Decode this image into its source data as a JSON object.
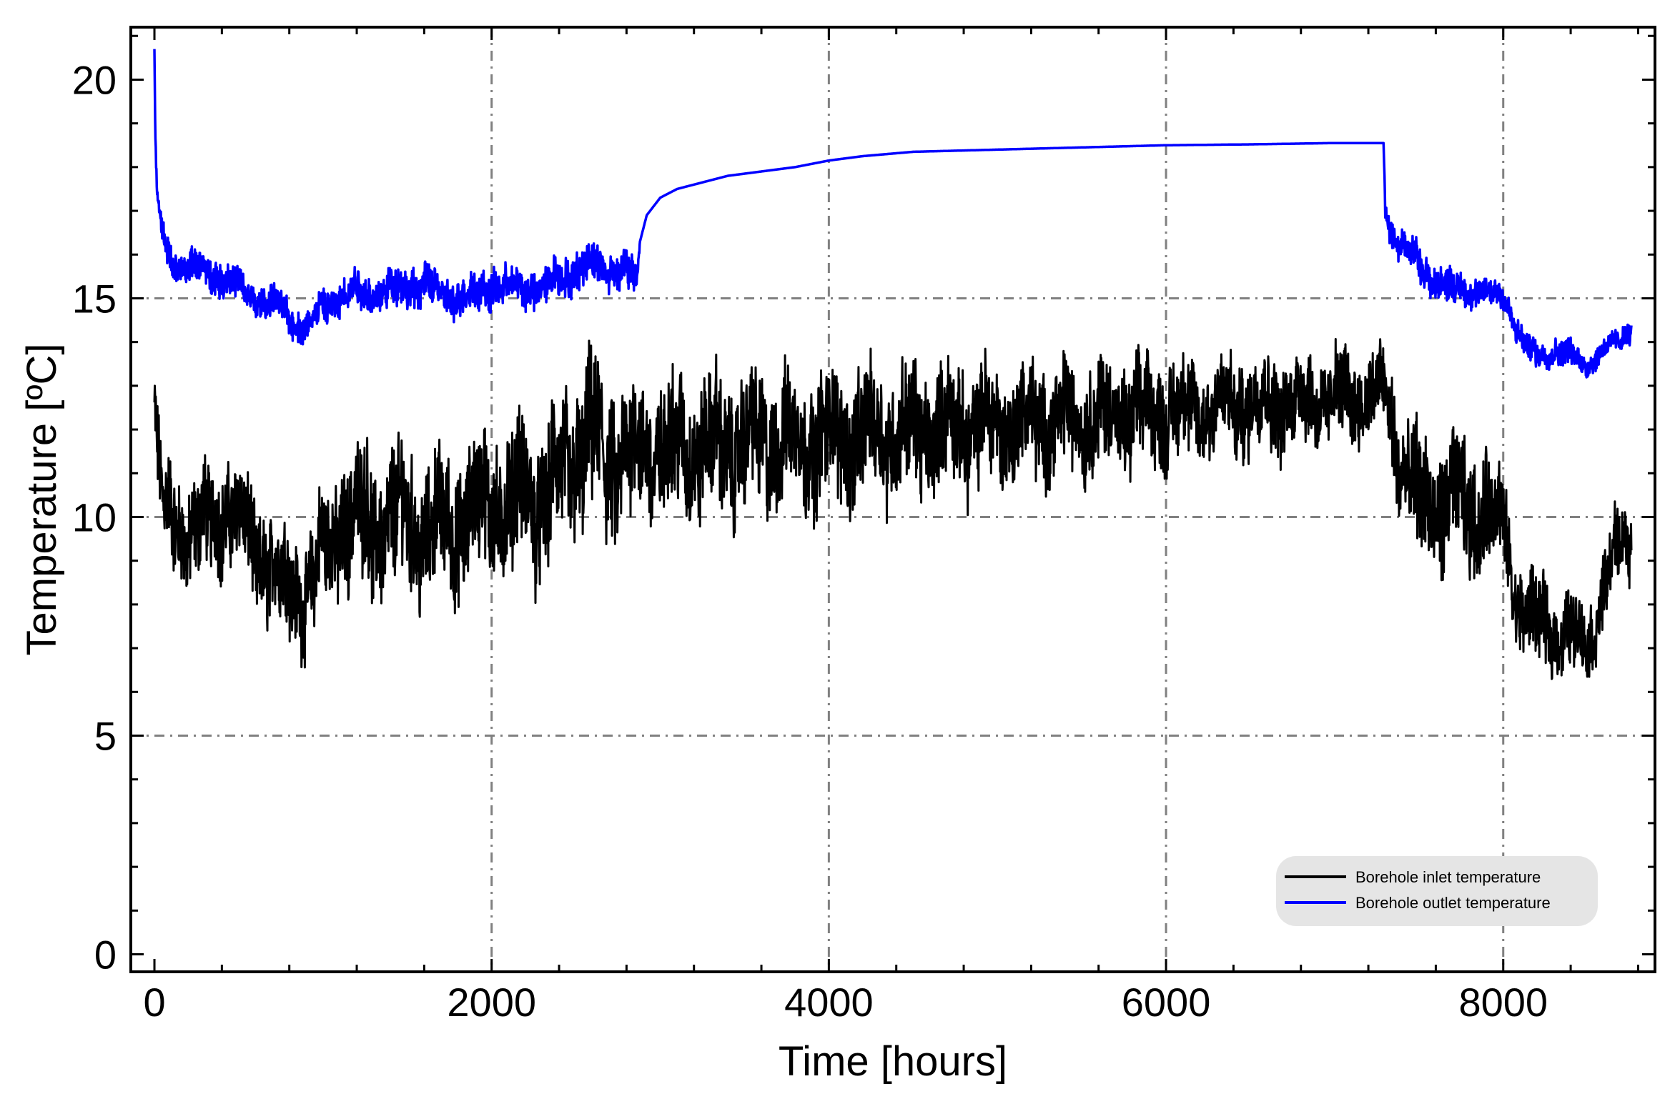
{
  "chart_data": {
    "type": "line",
    "title": "",
    "xlabel": "Time [hours]",
    "ylabel": "Temperature [ºC]",
    "xlim": [
      -140,
      8900
    ],
    "ylim": [
      -0.4,
      21.2
    ],
    "xticks": [
      0,
      2000,
      4000,
      6000,
      8000
    ],
    "xtick_labels": [
      "0",
      "2000",
      "4000",
      "6000",
      "8000"
    ],
    "yticks": [
      0,
      5,
      10,
      15,
      20
    ],
    "ytick_labels": [
      "0",
      "5",
      "10",
      "15",
      "20"
    ],
    "grid": true,
    "grid_style": "dash-dot gray",
    "legend_position": "bottom-right",
    "series": [
      {
        "name": "Borehole inlet temperature",
        "color": "#000000",
        "x": [
          0,
          20,
          50,
          100,
          200,
          300,
          400,
          500,
          600,
          700,
          800,
          900,
          1000,
          1100,
          1200,
          1300,
          1400,
          1500,
          1600,
          1700,
          1800,
          1900,
          2000,
          2100,
          2200,
          2300,
          2400,
          2500,
          2600,
          2700,
          2800,
          2870,
          7300,
          7350,
          7400,
          7500,
          7600,
          7700,
          7800,
          7900,
          8000,
          8050,
          8100,
          8200,
          8300,
          8400,
          8500,
          8550,
          8600,
          8650,
          8700,
          8760
        ],
        "y": [
          12.5,
          11.2,
          10.3,
          10.0,
          9.6,
          9.8,
          10.2,
          10.0,
          9.2,
          8.9,
          8.4,
          8.2,
          9.2,
          9.8,
          10.0,
          9.8,
          9.9,
          10.0,
          9.6,
          9.8,
          9.8,
          10.2,
          10.4,
          10.2,
          10.7,
          10.2,
          10.9,
          11.4,
          11.7,
          11.2,
          11.5,
          11.5,
          12.8,
          12.0,
          11.2,
          10.3,
          10.2,
          10.4,
          10.1,
          10.2,
          9.9,
          8.6,
          7.9,
          7.6,
          7.4,
          7.3,
          7.1,
          7.6,
          8.4,
          9.0,
          9.4,
          9.6
        ],
        "amplitude": [
          1.2,
          1.2,
          1.2,
          1.3,
          1.3,
          1.4,
          1.4,
          1.4,
          1.4,
          1.4,
          1.4,
          1.3,
          1.5,
          1.6,
          1.7,
          1.8,
          1.8,
          1.8,
          1.7,
          1.7,
          1.7,
          1.7,
          1.8,
          1.8,
          1.8,
          1.8,
          1.9,
          2.0,
          2.0,
          1.9,
          1.8,
          1.8,
          1.1,
          1.3,
          1.5,
          1.6,
          1.6,
          1.6,
          1.5,
          1.4,
          1.3,
          1.2,
          1.1,
          1.1,
          1.0,
          1.0,
          0.9,
          0.9,
          0.9,
          1.0,
          1.0,
          1.0
        ]
      },
      {
        "name": "Borehole outlet temperature",
        "color": "#0000ff",
        "x": [
          0,
          5,
          15,
          40,
          80,
          150,
          250,
          350,
          450,
          550,
          650,
          750,
          850,
          900,
          1000,
          1100,
          1200,
          1300,
          1400,
          1500,
          1600,
          1700,
          1800,
          1900,
          2000,
          2100,
          2200,
          2300,
          2400,
          2500,
          2600,
          2700,
          2800,
          2860,
          2880,
          2920,
          3000,
          3100,
          3200,
          3400,
          3600,
          3800,
          4000,
          4200,
          4500,
          5000,
          5500,
          6000,
          6500,
          7000,
          7290,
          7300,
          7330,
          7400,
          7500,
          7600,
          7700,
          7800,
          7900,
          8000,
          8050,
          8100,
          8150,
          8200,
          8300,
          8400,
          8500,
          8600,
          8700,
          8760
        ],
        "y": [
          20.7,
          18.7,
          17.4,
          16.7,
          16.0,
          15.7,
          15.7,
          15.6,
          15.4,
          15.1,
          14.9,
          14.8,
          14.4,
          14.3,
          14.8,
          15.0,
          15.2,
          15.1,
          15.2,
          15.3,
          15.3,
          15.1,
          15.0,
          15.1,
          15.3,
          15.2,
          15.3,
          15.2,
          15.5,
          15.6,
          15.8,
          15.7,
          15.6,
          15.4,
          16.3,
          16.9,
          17.3,
          17.5,
          17.6,
          17.8,
          17.9,
          18.0,
          18.15,
          18.25,
          18.35,
          18.4,
          18.45,
          18.5,
          18.52,
          18.55,
          18.55,
          17.2,
          16.6,
          16.2,
          15.8,
          15.4,
          15.2,
          15.2,
          15.1,
          15.1,
          14.6,
          14.1,
          13.8,
          13.7,
          13.8,
          13.7,
          13.5,
          13.8,
          14.1,
          14.3
        ],
        "amplitude": [
          0.0,
          0.1,
          0.2,
          0.3,
          0.4,
          0.4,
          0.4,
          0.45,
          0.45,
          0.45,
          0.4,
          0.4,
          0.4,
          0.4,
          0.45,
          0.45,
          0.5,
          0.5,
          0.5,
          0.5,
          0.5,
          0.5,
          0.5,
          0.5,
          0.5,
          0.5,
          0.5,
          0.5,
          0.5,
          0.5,
          0.5,
          0.5,
          0.5,
          0.5,
          0.0,
          0.0,
          0.0,
          0.0,
          0.0,
          0.0,
          0.0,
          0.0,
          0.0,
          0.0,
          0.0,
          0.0,
          0.0,
          0.0,
          0.0,
          0.0,
          0.0,
          0.3,
          0.4,
          0.45,
          0.45,
          0.45,
          0.45,
          0.4,
          0.4,
          0.4,
          0.35,
          0.35,
          0.35,
          0.35,
          0.35,
          0.35,
          0.3,
          0.3,
          0.3,
          0.3
        ]
      }
    ]
  }
}
